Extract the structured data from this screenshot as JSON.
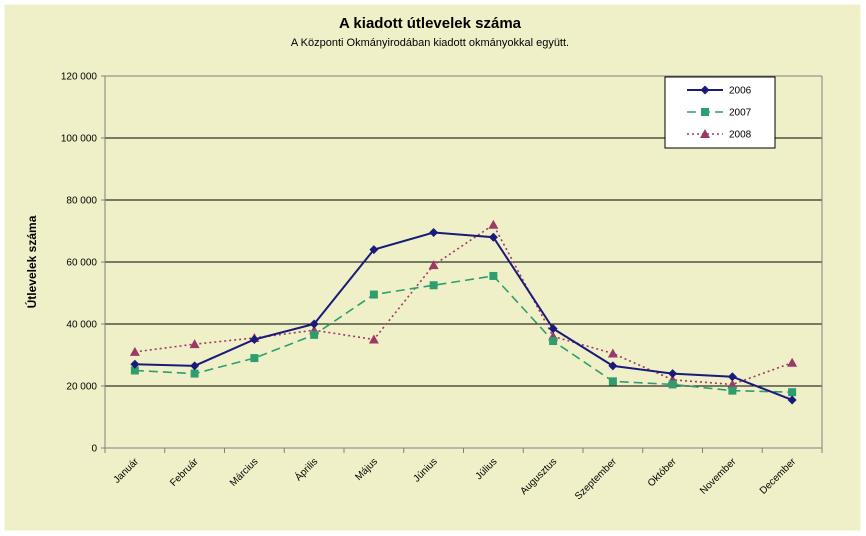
{
  "chart_data": {
    "type": "line",
    "title": "A  kiadott útlevelek száma",
    "subtitle": "A Központi Okmányirodában kiadott okmányokkal együtt.",
    "ylabel": "Útlevelek száma",
    "xlabel": "",
    "categories": [
      "Január",
      "Február",
      "Március",
      "Április",
      "Május",
      "Június",
      "Július",
      "Augusztus",
      "Szeptember",
      "Október",
      "November",
      "December"
    ],
    "ylim": [
      0,
      120000
    ],
    "yticks": [
      0,
      20000,
      40000,
      60000,
      80000,
      100000,
      120000
    ],
    "ytick_labels": [
      "0",
      "20 000",
      "40 000",
      "60 000",
      "80 000",
      "100 000",
      "120 000"
    ],
    "grid": true,
    "legend_position": "top-right",
    "series": [
      {
        "name": "2006",
        "color": "#1a1a7a",
        "marker": "diamond",
        "dash": "solid",
        "values": [
          27000,
          26500,
          35000,
          40000,
          64000,
          69500,
          68000,
          38500,
          26500,
          24000,
          23000,
          15500
        ]
      },
      {
        "name": "2007",
        "color": "#2e9e6e",
        "marker": "square",
        "dash": "dashed",
        "values": [
          25000,
          24000,
          29000,
          36500,
          49500,
          52500,
          55500,
          34500,
          21500,
          20500,
          18500,
          18000
        ]
      },
      {
        "name": "2008",
        "color": "#9b3a66",
        "marker": "triangle",
        "dash": "dotted",
        "values": [
          31000,
          33500,
          35500,
          38000,
          35000,
          59000,
          72000,
          36000,
          30500,
          22000,
          20500,
          27500
        ]
      }
    ]
  },
  "colors": {
    "background": "#f0f0c8",
    "frame": "#ffffff",
    "axis": "#808080",
    "grid": "#000000"
  }
}
